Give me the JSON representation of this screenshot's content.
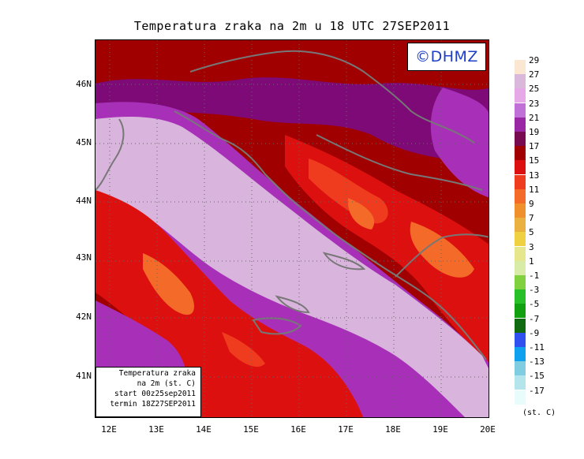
{
  "title": "Temperatura zraka na 2m u 18 UTC 27SEP2011",
  "logo": "©DHMZ",
  "axes": {
    "y_labels": [
      "46N",
      "45N",
      "44N",
      "43N",
      "42N",
      "41N"
    ],
    "x_labels": [
      "12E",
      "13E",
      "14E",
      "15E",
      "16E",
      "17E",
      "18E",
      "19E",
      "20E"
    ]
  },
  "info_box": {
    "line1": "Temperatura zraka",
    "line2": "na 2m (st. C)",
    "line3": "start 00z25sep2011",
    "line4": "termin 18Z27SEP2011"
  },
  "legend": {
    "units": "(st. C)",
    "labels": [
      "29",
      "27",
      "25",
      "23",
      "21",
      "19",
      "17",
      "15",
      "13",
      "11",
      "9",
      "7",
      "5",
      "3",
      "1",
      "-1",
      "-3",
      "-5",
      "-7",
      "-9",
      "-11",
      "-13",
      "-15",
      "-17"
    ],
    "colors": [
      "#fbe6d2",
      "#d9b8dc",
      "#e6a8e6",
      "#c070d6",
      "#9a28a4",
      "#780a50",
      "#a00000",
      "#dd1010",
      "#f03c1e",
      "#f46a28",
      "#f0902c",
      "#eab040",
      "#eed040",
      "#e6e68c",
      "#d8eca8",
      "#80d040",
      "#28c028",
      "#10a010",
      "#106a10",
      "#3050f0",
      "#10a0f0",
      "#80cce0",
      "#b4e4ec",
      "#e8fcfc"
    ]
  },
  "colors": {
    "sea_light": "#d9b4dc",
    "sea_mid": "#e6a8e6",
    "purple": "#a830b8",
    "dark_purple": "#7e0a78",
    "dark_red": "#a00000",
    "red": "#dd1010",
    "orange_red": "#f03c1e",
    "orange": "#f46a28",
    "border_grey": "#777777"
  }
}
